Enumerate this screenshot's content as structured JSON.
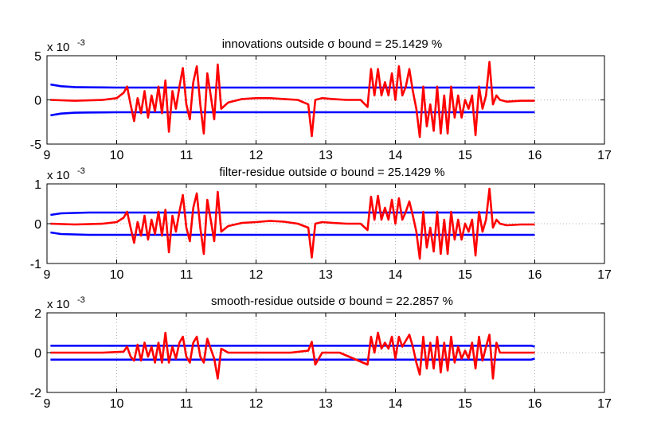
{
  "chart_data": [
    {
      "type": "line",
      "title": "innovations outside σ bound = 25.1429 %",
      "exponent_label": "x 10",
      "exponent_power": "-3",
      "xlim": [
        9,
        17
      ],
      "ylim": [
        -5,
        5
      ],
      "xticks": [
        "9",
        "10",
        "11",
        "12",
        "13",
        "14",
        "15",
        "16",
        "17"
      ],
      "yticks": [
        "-5",
        "0",
        "5"
      ],
      "grid": true,
      "series": [
        {
          "color": "#0000ff",
          "x": [
            9.05,
            9.2,
            9.4,
            9.6,
            9.8,
            10.0,
            11.0,
            12.0,
            13.0,
            14.0,
            15.0,
            16.0
          ],
          "y": [
            1.75,
            1.55,
            1.45,
            1.42,
            1.41,
            1.4,
            1.4,
            1.4,
            1.4,
            1.4,
            1.4,
            1.4
          ]
        },
        {
          "color": "#0000ff",
          "x": [
            9.05,
            9.2,
            9.4,
            9.6,
            9.8,
            10.0,
            11.0,
            12.0,
            13.0,
            14.0,
            15.0,
            16.0
          ],
          "y": [
            -1.75,
            -1.55,
            -1.45,
            -1.42,
            -1.41,
            -1.4,
            -1.4,
            -1.4,
            -1.4,
            -1.4,
            -1.4,
            -1.4
          ]
        },
        {
          "color": "#ff0000",
          "x": [
            9.05,
            9.4,
            9.8,
            10.0,
            10.1,
            10.15,
            10.2,
            10.25,
            10.3,
            10.35,
            10.4,
            10.45,
            10.5,
            10.55,
            10.6,
            10.65,
            10.7,
            10.75,
            10.8,
            10.85,
            10.9,
            10.95,
            11.0,
            11.05,
            11.1,
            11.15,
            11.2,
            11.25,
            11.3,
            11.35,
            11.4,
            11.45,
            11.5,
            11.6,
            11.8,
            12.0,
            12.2,
            12.4,
            12.6,
            12.75,
            12.8,
            12.85,
            12.95,
            13.1,
            13.3,
            13.5,
            13.6,
            13.65,
            13.7,
            13.75,
            13.8,
            13.85,
            13.9,
            13.95,
            14.0,
            14.05,
            14.1,
            14.15,
            14.2,
            14.25,
            14.3,
            14.35,
            14.4,
            14.45,
            14.5,
            14.55,
            14.6,
            14.65,
            14.7,
            14.75,
            14.8,
            14.85,
            14.9,
            14.95,
            15.0,
            15.05,
            15.1,
            15.15,
            15.2,
            15.25,
            15.3,
            15.35,
            15.4,
            15.45,
            15.5,
            15.6,
            15.8,
            16.0
          ],
          "y": [
            0,
            -0.1,
            0,
            0.2,
            0.8,
            1.5,
            -0.5,
            -2.4,
            0.2,
            -1.5,
            1.0,
            -2.0,
            0.5,
            -1.3,
            1.5,
            -1.5,
            2.2,
            -3.6,
            1.0,
            -1.0,
            1.5,
            3.6,
            -0.5,
            -2.2,
            2.0,
            3.8,
            -0.5,
            -3.8,
            3.0,
            0.5,
            -2.2,
            4.0,
            -1.0,
            -0.3,
            0.1,
            0.2,
            0.2,
            0.1,
            0,
            -0.5,
            -4.1,
            0,
            0.2,
            0.1,
            0,
            0,
            -0.8,
            3.5,
            0.5,
            3.5,
            0.5,
            2.0,
            0.5,
            3.0,
            0,
            3.8,
            0.5,
            1.5,
            3.5,
            1.0,
            -1.0,
            -4.2,
            1.5,
            -3.0,
            -0.5,
            -3.5,
            1.5,
            -3.8,
            0.5,
            -3.8,
            1.5,
            -2.0,
            0.5,
            -2.0,
            0,
            -1.0,
            0.5,
            -4.0,
            1.5,
            -1.0,
            0.5,
            4.3,
            -0.5,
            0.5,
            0,
            -0.2,
            -0.1,
            -0.1
          ]
        }
      ]
    },
    {
      "type": "line",
      "title": "filter-residue outside σ bound = 25.1429 %",
      "exponent_label": "x 10",
      "exponent_power": "-3",
      "xlim": [
        9,
        17
      ],
      "ylim": [
        -1,
        1
      ],
      "xticks": [
        "9",
        "10",
        "11",
        "12",
        "13",
        "14",
        "15",
        "16",
        "17"
      ],
      "yticks": [
        "-1",
        "0",
        "1"
      ],
      "grid": true,
      "series": [
        {
          "color": "#0000ff",
          "x": [
            9.05,
            9.2,
            9.4,
            9.6,
            10.0,
            11.0,
            12.0,
            13.0,
            14.0,
            15.0,
            16.0
          ],
          "y": [
            0.22,
            0.26,
            0.27,
            0.28,
            0.28,
            0.28,
            0.28,
            0.28,
            0.28,
            0.28,
            0.28
          ]
        },
        {
          "color": "#0000ff",
          "x": [
            9.05,
            9.2,
            9.4,
            9.6,
            10.0,
            11.0,
            12.0,
            13.0,
            14.0,
            15.0,
            16.0
          ],
          "y": [
            -0.22,
            -0.26,
            -0.27,
            -0.28,
            -0.28,
            -0.28,
            -0.28,
            -0.28,
            -0.28,
            -0.28,
            -0.28
          ]
        },
        {
          "color": "#ff0000",
          "x": [
            9.05,
            9.4,
            9.8,
            10.0,
            10.1,
            10.15,
            10.2,
            10.25,
            10.3,
            10.35,
            10.4,
            10.45,
            10.5,
            10.55,
            10.6,
            10.65,
            10.7,
            10.75,
            10.8,
            10.85,
            10.9,
            10.95,
            11.0,
            11.05,
            11.1,
            11.15,
            11.2,
            11.25,
            11.3,
            11.35,
            11.4,
            11.45,
            11.5,
            11.6,
            11.8,
            12.0,
            12.2,
            12.4,
            12.6,
            12.75,
            12.8,
            12.85,
            12.95,
            13.1,
            13.3,
            13.5,
            13.6,
            13.65,
            13.7,
            13.75,
            13.8,
            13.85,
            13.9,
            13.95,
            14.0,
            14.05,
            14.1,
            14.15,
            14.2,
            14.25,
            14.3,
            14.35,
            14.4,
            14.45,
            14.5,
            14.55,
            14.6,
            14.65,
            14.7,
            14.75,
            14.8,
            14.85,
            14.9,
            14.95,
            15.0,
            15.05,
            15.1,
            15.15,
            15.2,
            15.25,
            15.3,
            15.35,
            15.4,
            15.45,
            15.5,
            15.6,
            15.8,
            16.0
          ],
          "y": [
            0,
            -0.02,
            0,
            0.04,
            0.15,
            0.3,
            -0.1,
            -0.48,
            0.04,
            -0.3,
            0.2,
            -0.4,
            0.1,
            -0.26,
            0.3,
            -0.3,
            0.35,
            -0.72,
            0.2,
            -0.2,
            0.3,
            0.72,
            -0.1,
            -0.44,
            0.4,
            0.76,
            -0.1,
            -0.76,
            0.6,
            0.1,
            -0.44,
            0.8,
            -0.2,
            -0.06,
            0.02,
            0.04,
            0.07,
            0.05,
            0,
            -0.1,
            -0.85,
            0,
            0.04,
            0.02,
            0,
            0,
            -0.16,
            0.68,
            0.1,
            0.7,
            0.1,
            0.4,
            0.1,
            0.6,
            0,
            0.64,
            0.1,
            0.3,
            0.56,
            0.2,
            -0.2,
            -0.88,
            0.3,
            -0.6,
            -0.1,
            -0.7,
            0.3,
            -0.76,
            0.1,
            -0.76,
            0.3,
            -0.4,
            0.1,
            -0.4,
            0,
            -0.2,
            0.1,
            -0.8,
            0.3,
            -0.2,
            0.1,
            0.88,
            -0.1,
            0.1,
            0,
            -0.04,
            -0.02,
            -0.02
          ]
        }
      ]
    },
    {
      "type": "line",
      "title": "smooth-residue outside σ bound = 22.2857 %",
      "exponent_label": "x 10",
      "exponent_power": "-3",
      "xlim": [
        9,
        17
      ],
      "ylim": [
        -2,
        2
      ],
      "xticks": [
        "9",
        "10",
        "11",
        "12",
        "13",
        "14",
        "15",
        "16",
        "17"
      ],
      "yticks": [
        "-2",
        "0",
        "2"
      ],
      "grid": true,
      "series": [
        {
          "color": "#0000ff",
          "x": [
            9.05,
            10.0,
            11.0,
            12.0,
            13.0,
            14.0,
            15.0,
            15.95,
            16.0
          ],
          "y": [
            0.35,
            0.35,
            0.35,
            0.35,
            0.35,
            0.35,
            0.35,
            0.35,
            0.3
          ]
        },
        {
          "color": "#0000ff",
          "x": [
            9.05,
            10.0,
            11.0,
            12.0,
            13.0,
            14.0,
            15.0,
            15.95,
            16.0
          ],
          "y": [
            -0.35,
            -0.35,
            -0.35,
            -0.35,
            -0.35,
            -0.35,
            -0.35,
            -0.35,
            -0.3
          ]
        },
        {
          "color": "#ff0000",
          "x": [
            9.05,
            9.8,
            10.1,
            10.15,
            10.2,
            10.25,
            10.3,
            10.35,
            10.4,
            10.45,
            10.5,
            10.55,
            10.6,
            10.65,
            10.7,
            10.75,
            10.8,
            10.85,
            10.9,
            10.95,
            11.0,
            11.05,
            11.1,
            11.15,
            11.2,
            11.25,
            11.3,
            11.35,
            11.4,
            11.45,
            11.5,
            11.6,
            12.0,
            12.5,
            12.75,
            12.8,
            12.85,
            12.95,
            13.2,
            13.6,
            13.65,
            13.7,
            13.75,
            13.8,
            13.85,
            13.9,
            13.95,
            14.0,
            14.05,
            14.1,
            14.15,
            14.2,
            14.25,
            14.3,
            14.35,
            14.4,
            14.45,
            14.5,
            14.55,
            14.6,
            14.65,
            14.7,
            14.75,
            14.8,
            14.85,
            14.9,
            14.95,
            15.0,
            15.05,
            15.1,
            15.15,
            15.2,
            15.25,
            15.3,
            15.35,
            15.4,
            15.45,
            15.5,
            15.6,
            16.0
          ],
          "y": [
            0,
            0,
            0.05,
            0.3,
            -0.2,
            -0.4,
            0.4,
            -0.4,
            0.5,
            -0.2,
            0.3,
            -0.5,
            0.5,
            -0.5,
            1.0,
            -0.5,
            0.3,
            -0.3,
            0.5,
            0.8,
            -0.2,
            -0.5,
            0.5,
            0.8,
            -0.2,
            -0.5,
            0.7,
            0.2,
            -0.3,
            -1.3,
            0.2,
            0,
            0,
            0,
            0.1,
            0.55,
            -0.6,
            0,
            0,
            -0.6,
            0.8,
            0,
            1.0,
            0.2,
            0.5,
            0.2,
            0.8,
            -0.3,
            0.8,
            0.3,
            0.6,
            0.9,
            0.3,
            -0.5,
            -1.1,
            0.8,
            -0.8,
            0.5,
            -0.8,
            0.8,
            -1.0,
            0.5,
            -0.9,
            0.8,
            -0.5,
            0.3,
            -0.3,
            0.1,
            -0.3,
            0.5,
            -0.8,
            0.8,
            -0.4,
            0.3,
            0.9,
            -1.3,
            0.5,
            0,
            0,
            0
          ]
        }
      ]
    }
  ]
}
